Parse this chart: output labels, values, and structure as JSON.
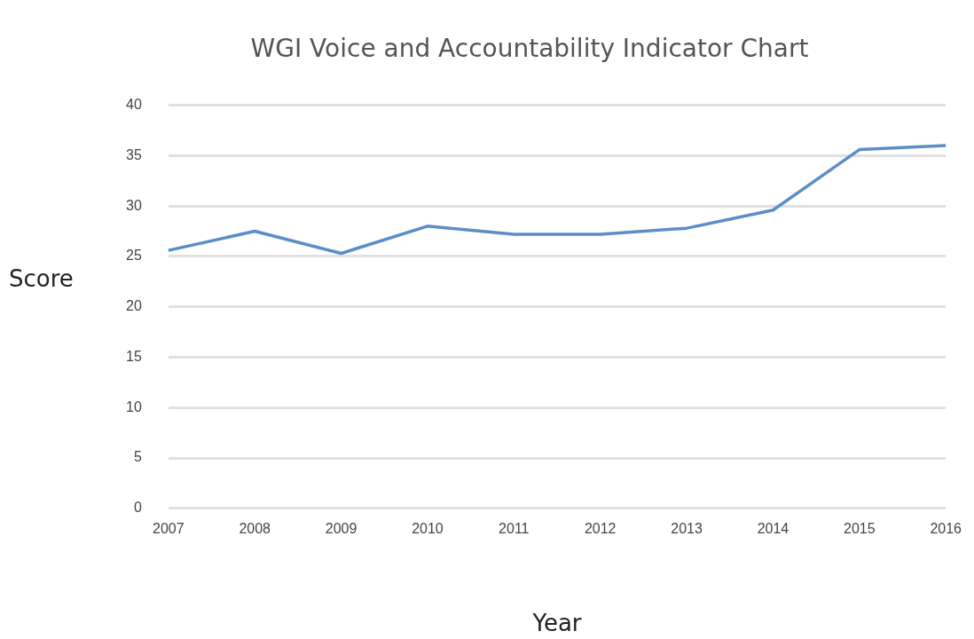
{
  "chart_data": {
    "type": "line",
    "title": "WGI Voice and Accountability Indicator Chart",
    "xlabel": "Year",
    "ylabel": "Score",
    "categories": [
      "2007",
      "2008",
      "2009",
      "2010",
      "2011",
      "2012",
      "2013",
      "2014",
      "2015",
      "2016"
    ],
    "series": [
      {
        "color": "#5b8ec8",
        "values": [
          25.6,
          27.5,
          25.3,
          28.0,
          27.2,
          27.2,
          27.8,
          29.6,
          35.6,
          36.0
        ]
      }
    ],
    "ylim": [
      0,
      40
    ],
    "yticks": [
      0,
      5,
      10,
      15,
      20,
      25,
      30,
      35,
      40
    ],
    "grid": "y",
    "legend": false,
    "marker": "none",
    "line_style": "solid"
  }
}
